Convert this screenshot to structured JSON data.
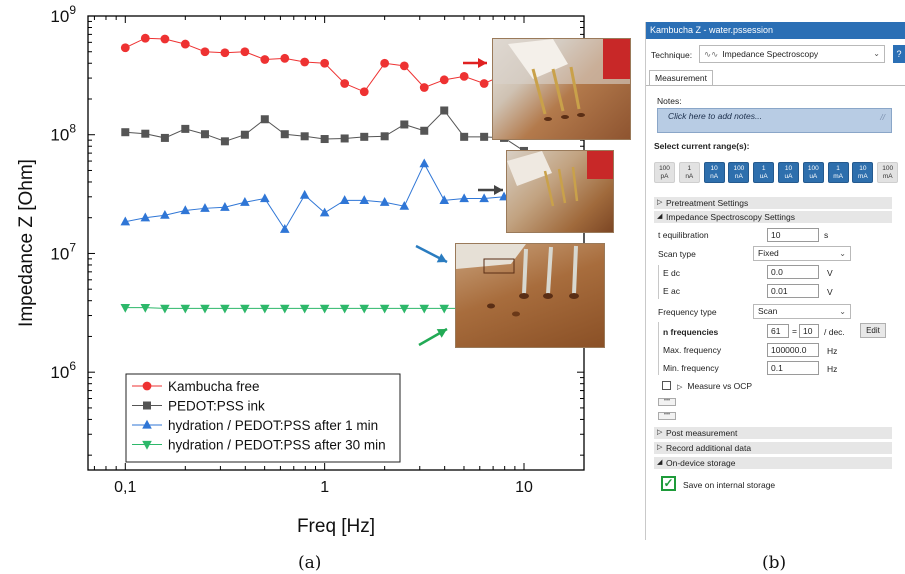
{
  "chart_data": {
    "type": "scatter",
    "xlabel": "Freq [Hz]",
    "ylabel": "Impedance Z [Ohm]",
    "xscale": "log",
    "yscale": "log",
    "xlim": [
      0.065,
      20
    ],
    "ylim": [
      150000,
      1000000000
    ],
    "x_ticks": [
      {
        "value": 0.1,
        "label": "0,1"
      },
      {
        "value": 1,
        "label": "1"
      },
      {
        "value": 10,
        "label": "10"
      }
    ],
    "y_ticks": [
      {
        "value": 1000000,
        "base": "10",
        "exp": "6"
      },
      {
        "value": 10000000,
        "base": "10",
        "exp": "7"
      },
      {
        "value": 100000000,
        "base": "10",
        "exp": "8"
      },
      {
        "value": 1000000000,
        "base": "10",
        "exp": "9"
      }
    ],
    "legend_position": "bottom-left",
    "series": [
      {
        "name": "Kambucha free",
        "marker": "circle",
        "color": "#ee3232",
        "x": [
          0.1,
          0.126,
          0.158,
          0.2,
          0.251,
          0.316,
          0.398,
          0.501,
          0.631,
          0.794,
          1,
          1.26,
          1.58,
          2,
          2.51,
          3.16,
          3.98,
          5.01,
          6.31,
          7.94,
          10
        ],
        "values": [
          540000000,
          650000000,
          640000000,
          580000000,
          500000000,
          490000000,
          500000000,
          430000000,
          440000000,
          410000000,
          400000000,
          270000000,
          230000000,
          400000000,
          380000000,
          250000000,
          290000000,
          310000000,
          270000000,
          320000000,
          140000000
        ]
      },
      {
        "name": "PEDOT:PSS ink",
        "marker": "square",
        "color": "#555555",
        "x": [
          0.1,
          0.126,
          0.158,
          0.2,
          0.251,
          0.316,
          0.398,
          0.501,
          0.631,
          0.794,
          1,
          1.26,
          1.58,
          2,
          2.51,
          3.16,
          3.98,
          5.01,
          6.31,
          7.94,
          10
        ],
        "values": [
          105000000,
          102000000,
          94000000,
          112000000,
          101000000,
          88000000,
          100000000,
          135000000,
          101000000,
          97000000,
          92000000,
          93000000,
          96000000,
          97000000,
          122000000,
          108000000,
          160000000,
          96000000,
          96000000,
          94000000,
          73000000
        ]
      },
      {
        "name": "hydration / PEDOT:PSS after 1 min",
        "marker": "triangle-up",
        "color": "#2f76d6",
        "x": [
          0.1,
          0.126,
          0.158,
          0.2,
          0.251,
          0.316,
          0.398,
          0.501,
          0.631,
          0.794,
          1,
          1.26,
          1.58,
          2,
          2.51,
          3.16,
          3.98,
          5.01,
          6.31,
          7.94,
          10
        ],
        "values": [
          18500000,
          20000000,
          21000000,
          23000000,
          24000000,
          24500000,
          27000000,
          29000000,
          16000000,
          31000000,
          22000000,
          28000000,
          28000000,
          27000000,
          25000000,
          57000000,
          28000000,
          29000000,
          29000000,
          30000000,
          32000000
        ]
      },
      {
        "name": "hydration / PEDOT:PSS after 30 min",
        "marker": "triangle-down",
        "color": "#2db86a",
        "x": [
          0.1,
          0.126,
          0.158,
          0.2,
          0.251,
          0.316,
          0.398,
          0.501,
          0.631,
          0.794,
          1,
          1.26,
          1.58,
          2,
          2.51,
          3.16,
          3.98,
          5.01,
          6.31,
          7.94,
          10
        ],
        "values": [
          3500000,
          3500000,
          3450000,
          3450000,
          3450000,
          3450000,
          3450000,
          3450000,
          3450000,
          3450000,
          3450000,
          3450000,
          3450000,
          3450000,
          3450000,
          3450000,
          3450000,
          3450000,
          3450000,
          3480000,
          3500000
        ]
      }
    ],
    "arrow_colors": [
      "#e02020",
      "#444444",
      "#2a7cc0",
      "#22aa55"
    ]
  },
  "captions": {
    "left": "(a)",
    "right": "(b)"
  },
  "panel": {
    "title": "Kambucha Z - water.pssession",
    "technique_label": "Technique:",
    "technique_value": "Impedance Spectroscopy",
    "help": "?",
    "tab": "Measurement",
    "notes_label": "Notes:",
    "notes_placeholder": "Click here to add notes...",
    "current_range_label": "Select current range(s):",
    "ranges": [
      {
        "value": "100",
        "unit": "pA",
        "selected": false
      },
      {
        "value": "1",
        "unit": "nA",
        "selected": false
      },
      {
        "value": "10",
        "unit": "nA",
        "selected": true
      },
      {
        "value": "100",
        "unit": "nA",
        "selected": true
      },
      {
        "value": "1",
        "unit": "uA",
        "selected": true
      },
      {
        "value": "10",
        "unit": "uA",
        "selected": true
      },
      {
        "value": "100",
        "unit": "uA",
        "selected": true
      },
      {
        "value": "1",
        "unit": "mA",
        "selected": true
      },
      {
        "value": "10",
        "unit": "mA",
        "selected": true
      },
      {
        "value": "100",
        "unit": "mA",
        "selected": false
      }
    ],
    "pretreatment": "Pretreatment Settings",
    "impedance_settings": "Impedance Spectroscopy Settings",
    "t_equil_label": "t equilibration",
    "t_equil_value": "10",
    "t_equil_unit": "s",
    "scan_type_label": "Scan type",
    "scan_type_value": "Fixed",
    "edc_label": "E dc",
    "edc_value": "0.0",
    "edc_unit": "V",
    "eac_label": "E ac",
    "eac_value": "0.01",
    "eac_unit": "V",
    "freq_type_label": "Frequency type",
    "freq_type_value": "Scan",
    "n_freq_label": "n frequencies",
    "n_freq_value": "61",
    "n_freq_eq": "=",
    "per_dec_value": "10",
    "per_dec_unit": "/ dec.",
    "edit": "Edit",
    "max_freq_label": "Max. frequency",
    "max_freq_value": "100000.0",
    "max_freq_unit": "Hz",
    "min_freq_label": "Min. frequency",
    "min_freq_value": "0.1",
    "min_freq_unit": "Hz",
    "measure_ocp": "Measure vs OCP",
    "post_measurement": "Post measurement",
    "record_data": "Record additional data",
    "on_device": "On-device storage",
    "save_internal": "Save on internal storage"
  }
}
